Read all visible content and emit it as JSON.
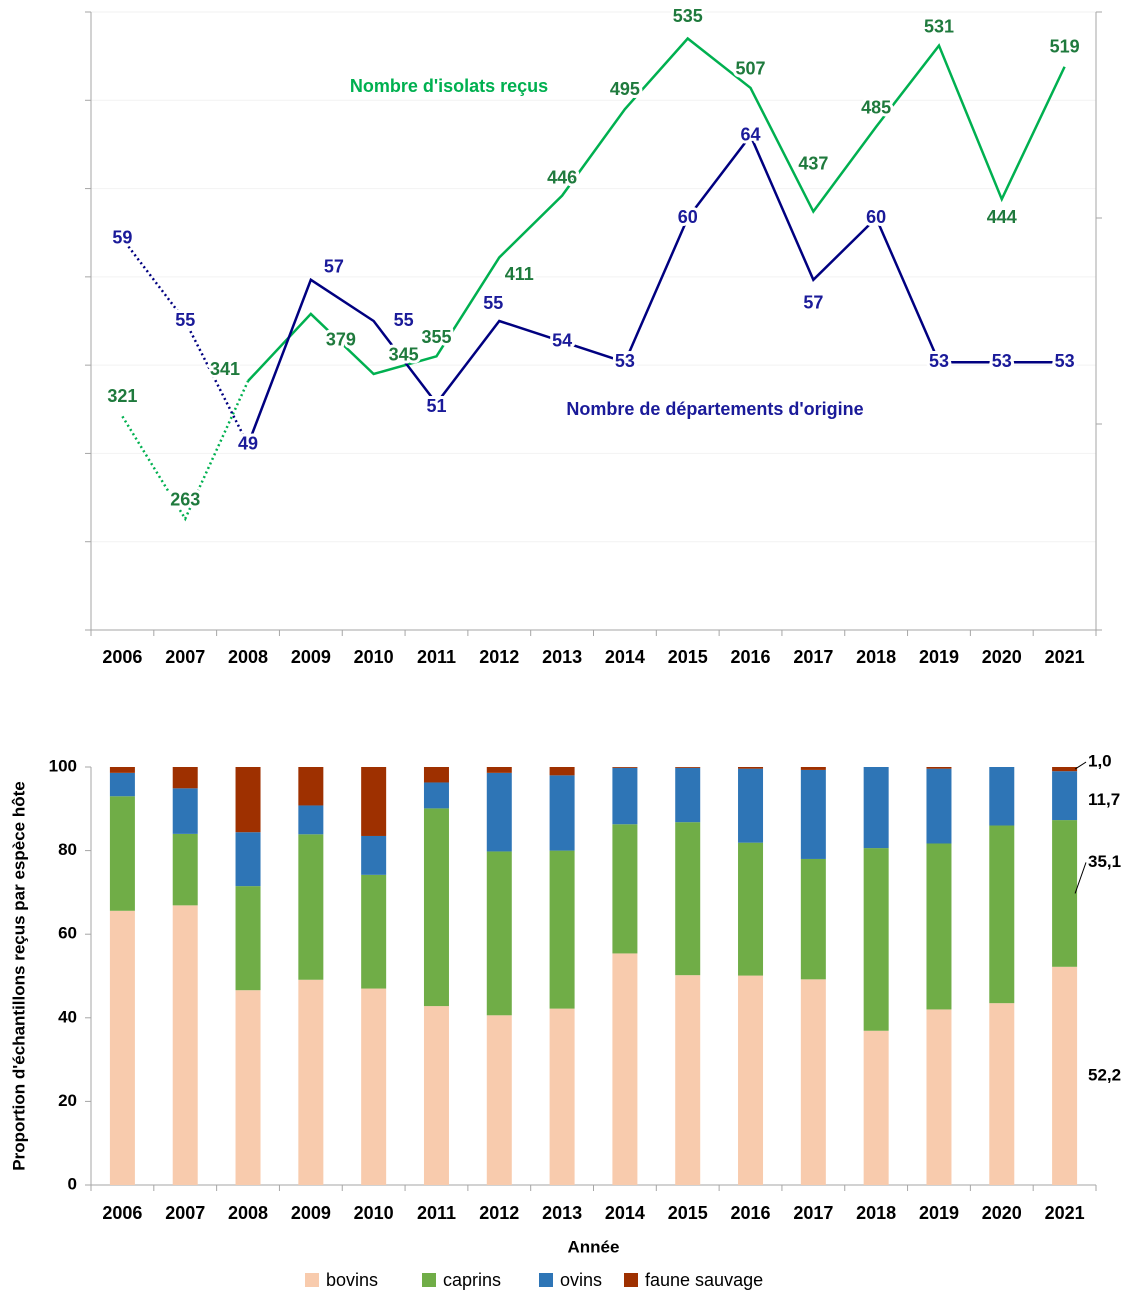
{
  "chart_data": [
    {
      "type": "line",
      "categories": [
        "2006",
        "2007",
        "2008",
        "2009",
        "2010",
        "2011",
        "2012",
        "2013",
        "2014",
        "2015",
        "2016",
        "2017",
        "2018",
        "2019",
        "2020",
        "2021"
      ],
      "ylim": [
        200,
        550
      ],
      "yticks": [
        200,
        250,
        300,
        350,
        400,
        450,
        500,
        550
      ],
      "y2lim": [
        40,
        70
      ],
      "y2ticks": [
        40,
        50,
        60,
        70
      ],
      "grid": true,
      "series": [
        {
          "name": "Nombre d'isolats reçus",
          "color": "#00b050",
          "label_color": "#1f7a3d",
          "axis": "y",
          "dotted_until_index": 2,
          "values": [
            321,
            263,
            341,
            379,
            345,
            355,
            411,
            446,
            495,
            535,
            507,
            437,
            485,
            531,
            444,
            519
          ]
        },
        {
          "name": "Nombre de départements d'origine",
          "color": "#000080",
          "label_color": "#1a1a99",
          "axis": "y2",
          "dotted_until_index": 2,
          "values": [
            59,
            55,
            49,
            57,
            55,
            51,
            55,
            54,
            53,
            60,
            64,
            57,
            60,
            53,
            53,
            53
          ]
        }
      ]
    },
    {
      "type": "stacked_bar",
      "categories": [
        "2006",
        "2007",
        "2008",
        "2009",
        "2010",
        "2011",
        "2012",
        "2013",
        "2014",
        "2015",
        "2016",
        "2017",
        "2018",
        "2019",
        "2020",
        "2021"
      ],
      "y_label": "Proportion d'échantillons reçus par espèce hôte",
      "x_label": "Année",
      "ylim": [
        0,
        100
      ],
      "yticks": [
        0,
        20,
        40,
        60,
        80,
        100
      ],
      "legend": "bottom",
      "series": [
        {
          "name": "bovins",
          "color": "#f8cbad",
          "values": [
            65.6,
            66.9,
            46.6,
            49.1,
            47.0,
            42.8,
            40.6,
            42.2,
            55.4,
            50.2,
            50.1,
            49.2,
            36.9,
            42.0,
            43.5,
            52.2
          ],
          "value_labels": [
            null,
            null,
            null,
            null,
            null,
            null,
            null,
            null,
            null,
            null,
            null,
            null,
            null,
            null,
            null,
            "52,2"
          ]
        },
        {
          "name": "caprins",
          "color": "#70ad47",
          "values": [
            27.4,
            17.1,
            24.9,
            34.8,
            27.2,
            47.3,
            39.2,
            37.8,
            30.9,
            36.6,
            31.8,
            28.8,
            43.7,
            39.7,
            42.5,
            35.1
          ],
          "value_labels": [
            null,
            null,
            null,
            null,
            null,
            null,
            null,
            null,
            null,
            null,
            null,
            null,
            null,
            null,
            null,
            "35,1"
          ]
        },
        {
          "name": "ovins",
          "color": "#2e75b6",
          "values": [
            5.6,
            10.9,
            12.9,
            6.9,
            9.3,
            6.2,
            18.8,
            18.0,
            13.5,
            13.0,
            17.7,
            21.3,
            19.4,
            17.9,
            14.0,
            11.7
          ],
          "value_labels": [
            null,
            null,
            null,
            null,
            null,
            null,
            null,
            null,
            null,
            null,
            null,
            null,
            null,
            null,
            null,
            "11,7"
          ]
        },
        {
          "name": "faune sauvage",
          "color": "#9e3000",
          "values": [
            1.4,
            5.1,
            15.6,
            9.2,
            16.5,
            3.7,
            1.4,
            2.0,
            0.2,
            0.2,
            0.4,
            0.7,
            0,
            0.4,
            0,
            1.0
          ],
          "value_labels": [
            null,
            null,
            null,
            null,
            null,
            null,
            null,
            null,
            null,
            null,
            null,
            null,
            null,
            null,
            null,
            "1,0"
          ]
        }
      ]
    }
  ]
}
